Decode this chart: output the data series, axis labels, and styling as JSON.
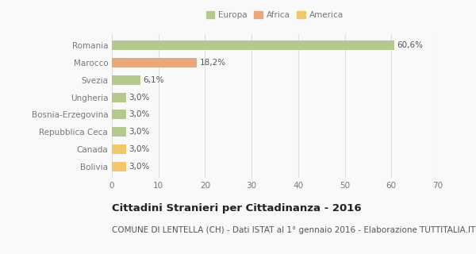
{
  "categories": [
    "Romania",
    "Marocco",
    "Svezia",
    "Ungheria",
    "Bosnia-Erzegovina",
    "Repubblica Ceca",
    "Canada",
    "Bolivia"
  ],
  "values": [
    60.6,
    18.2,
    6.1,
    3.0,
    3.0,
    3.0,
    3.0,
    3.0
  ],
  "labels": [
    "60,6%",
    "18,2%",
    "6,1%",
    "3,0%",
    "3,0%",
    "3,0%",
    "3,0%",
    "3,0%"
  ],
  "colors": [
    "#b5c98e",
    "#e8a87c",
    "#b5c98e",
    "#b5c98e",
    "#b5c98e",
    "#b5c98e",
    "#f0c76a",
    "#f0c76a"
  ],
  "legend": [
    {
      "label": "Europa",
      "color": "#b5c98e"
    },
    {
      "label": "Africa",
      "color": "#e8a87c"
    },
    {
      "label": "America",
      "color": "#f0c76a"
    }
  ],
  "xlim": [
    0,
    70
  ],
  "xticks": [
    0,
    10,
    20,
    30,
    40,
    50,
    60,
    70
  ],
  "title": "Cittadini Stranieri per Cittadinanza - 2016",
  "subtitle": "COMUNE DI LENTELLA (CH) - Dati ISTAT al 1° gennaio 2016 - Elaborazione TUTTITALIA.IT",
  "background_color": "#f9f9f9",
  "grid_color": "#dddddd",
  "title_fontsize": 9.5,
  "subtitle_fontsize": 7.5,
  "label_fontsize": 7.5,
  "tick_fontsize": 7.5,
  "bar_height": 0.55
}
